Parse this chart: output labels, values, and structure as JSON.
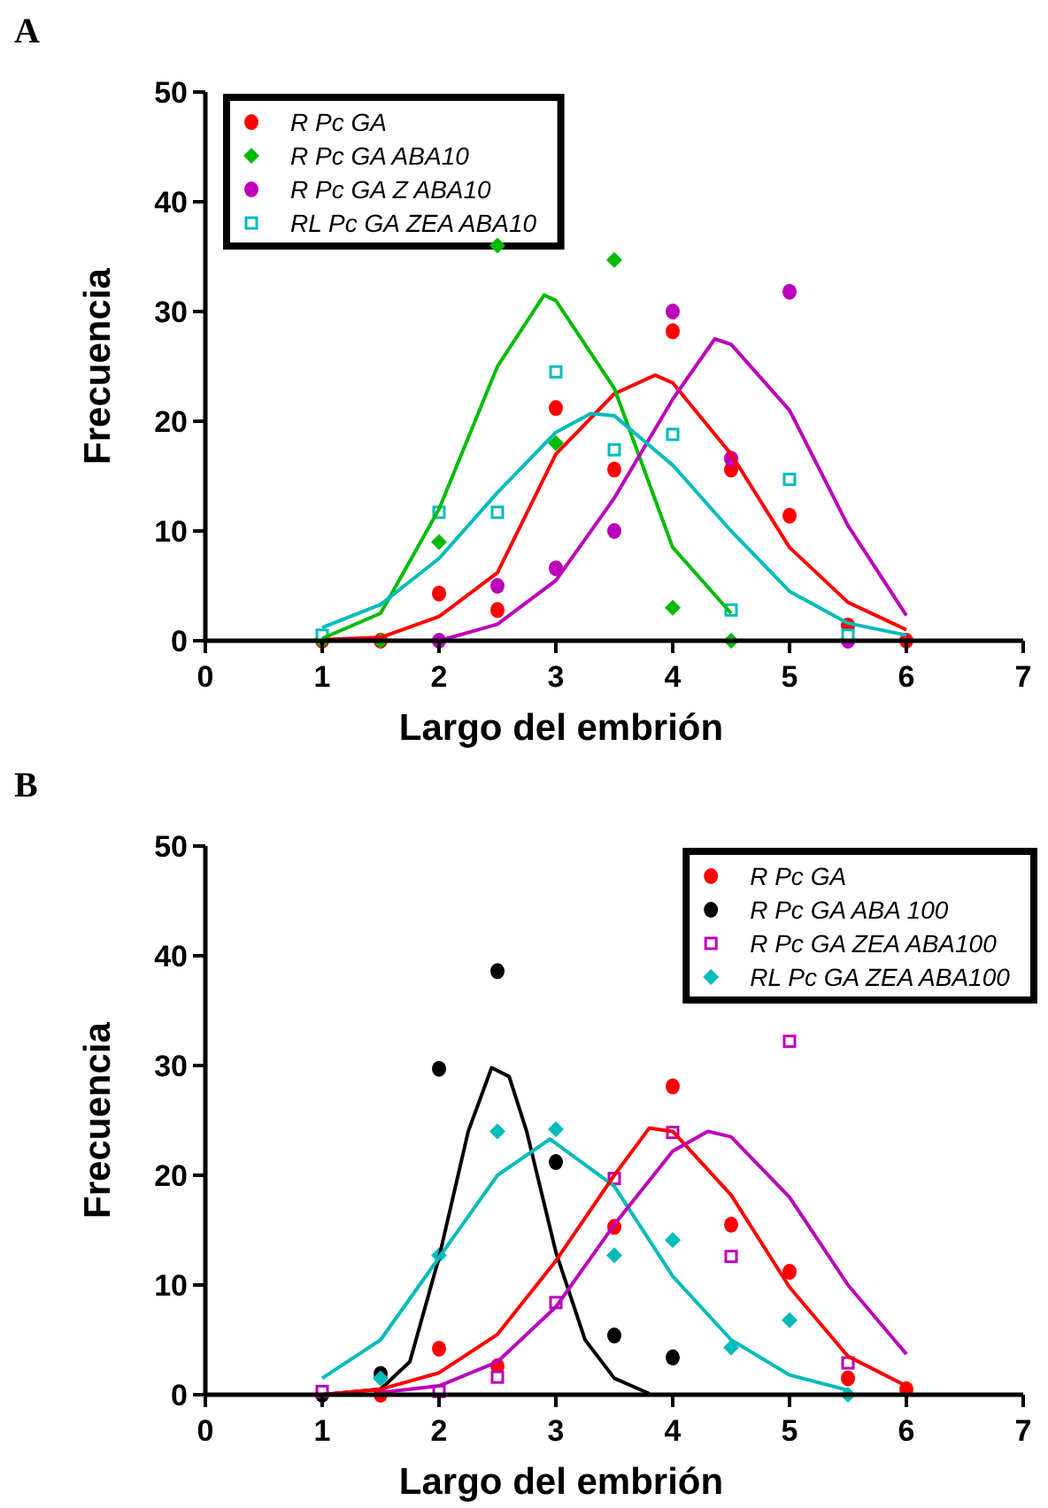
{
  "chart_data": [
    {
      "type": "scatter",
      "title": "A",
      "xlabel": "Largo del embrión",
      "ylabel": "Frecuencia",
      "xlim": [
        0,
        7
      ],
      "ylim": [
        0,
        50
      ],
      "xticks": [
        0,
        1,
        2,
        3,
        4,
        5,
        6,
        7
      ],
      "yticks": [
        0,
        10,
        20,
        30,
        40,
        50
      ],
      "grid": false,
      "legend": "top left",
      "series": [
        {
          "name": "R Pc GA",
          "type": "scatter",
          "marker": "circle",
          "color": "#ff0000",
          "x": [
            1,
            1.5,
            2,
            2.5,
            3,
            3.5,
            4,
            4.5,
            5,
            5.5,
            6
          ],
          "values": [
            0,
            0,
            4.3,
            2.8,
            21.2,
            15.6,
            28.2,
            15.6,
            11.4,
            1.4,
            0
          ]
        },
        {
          "name": "R Pc GA ABA10",
          "type": "scatter",
          "marker": "diamond",
          "color": "#00bb00",
          "x": [
            1,
            1.5,
            2,
            2.5,
            3,
            3.5,
            4,
            4.5
          ],
          "values": [
            0,
            0,
            9,
            36,
            18,
            34.7,
            3,
            0
          ]
        },
        {
          "name": "R Pc GA Z ABA10",
          "type": "scatter",
          "marker": "circle",
          "color": "#bb00bb",
          "x": [
            2,
            2.5,
            3,
            3.5,
            4,
            4.5,
            5,
            5.5
          ],
          "values": [
            0,
            5,
            6.6,
            10,
            30,
            16.6,
            31.8,
            0
          ]
        },
        {
          "name": "RL Pc GA ZEA ABA10",
          "type": "scatter",
          "marker": "square",
          "color": "#00bbbb",
          "x": [
            1,
            2,
            2.5,
            3,
            3.5,
            4,
            4.5,
            5,
            5.5
          ],
          "values": [
            0.5,
            11.7,
            11.7,
            24.5,
            17.4,
            18.8,
            2.8,
            14.7,
            0.5
          ]
        },
        {
          "type": "line",
          "color": "#ff0000",
          "x": [
            1,
            1.5,
            2,
            2.5,
            3,
            3.5,
            3.85,
            4,
            4.5,
            5,
            5.5,
            6
          ],
          "values": [
            0.1,
            0.3,
            2.2,
            6.2,
            17,
            22.5,
            24.2,
            23.5,
            17,
            8.5,
            3.5,
            1
          ]
        },
        {
          "type": "line",
          "color": "#00bb00",
          "x": [
            1,
            1.5,
            2,
            2.5,
            2.9,
            3,
            3.5,
            4,
            4.5
          ],
          "values": [
            0.2,
            2.5,
            12,
            25,
            31.5,
            31,
            23,
            8.5,
            2.5
          ]
        },
        {
          "type": "line",
          "color": "#bb00bb",
          "x": [
            2,
            2.5,
            3,
            3.5,
            4,
            4.36,
            4.5,
            5,
            5.5,
            6
          ],
          "values": [
            0,
            1.5,
            5.5,
            13,
            22,
            27.5,
            27,
            21,
            10.5,
            2.3
          ]
        },
        {
          "type": "line",
          "color": "#00bbbb",
          "x": [
            1,
            1.5,
            2,
            2.5,
            3,
            3.3,
            3.5,
            4,
            4.5,
            5,
            5.5,
            6
          ],
          "values": [
            1.2,
            3.3,
            7.5,
            13.5,
            19,
            20.7,
            20.5,
            16,
            10,
            4.5,
            1.6,
            0.5
          ]
        }
      ]
    },
    {
      "type": "scatter",
      "title": "B",
      "xlabel": "Largo del embrión",
      "ylabel": "Frecuencia",
      "xlim": [
        0,
        7
      ],
      "ylim": [
        0,
        50
      ],
      "xticks": [
        0,
        1,
        2,
        3,
        4,
        5,
        6,
        7
      ],
      "yticks": [
        0,
        10,
        20,
        30,
        40,
        50
      ],
      "grid": false,
      "legend": "top right",
      "series": [
        {
          "name": "R Pc GA",
          "type": "scatter",
          "marker": "circle",
          "color": "#ff0000",
          "x": [
            1.5,
            2,
            2.5,
            3.5,
            4,
            4.5,
            5,
            5.5,
            6
          ],
          "values": [
            0,
            4.2,
            2.6,
            15.3,
            28.1,
            15.5,
            11.2,
            1.5,
            0.5
          ]
        },
        {
          "name": "R Pc GA ABA 100",
          "type": "scatter",
          "marker": "circle",
          "color": "#000000",
          "x": [
            1,
            1.5,
            2,
            2.5,
            3,
            3.5,
            4
          ],
          "values": [
            0,
            1.9,
            29.7,
            38.6,
            21.2,
            5.4,
            3.4
          ]
        },
        {
          "name": "R Pc GA ZEA ABA100",
          "type": "scatter",
          "marker": "square",
          "color": "#bb00bb",
          "x": [
            1,
            2,
            2.5,
            3,
            3.5,
            4,
            4.5,
            5,
            5.5
          ],
          "values": [
            0.3,
            0.3,
            1.6,
            8.4,
            19.7,
            23.9,
            12.6,
            32.2,
            2.9
          ]
        },
        {
          "name": "RL Pc GA ZEA ABA100",
          "type": "scatter",
          "marker": "diamond",
          "color": "#00bbbb",
          "x": [
            1.5,
            2,
            2.5,
            3,
            3.5,
            4,
            4.5,
            5,
            5.5
          ],
          "values": [
            1.5,
            12.7,
            24,
            24.2,
            12.7,
            14.1,
            4.3,
            6.8,
            0
          ]
        },
        {
          "type": "line",
          "color": "#000000",
          "x": [
            1,
            1.5,
            1.75,
            2,
            2.25,
            2.45,
            2.6,
            2.75,
            3,
            3.25,
            3.5,
            3.8
          ],
          "values": [
            0,
            0.5,
            3,
            12.5,
            24,
            29.8,
            29,
            24,
            13,
            5,
            1.5,
            0.1
          ]
        },
        {
          "type": "line",
          "color": "#00bbbb",
          "x": [
            1,
            1.5,
            2,
            2.5,
            2.95,
            3.5,
            4,
            4.5,
            5,
            5.5
          ],
          "values": [
            1.5,
            5,
            12.5,
            20,
            23.3,
            19,
            10.8,
            5,
            1.8,
            0.4
          ]
        },
        {
          "type": "line",
          "color": "#ff0000",
          "x": [
            1,
            1.5,
            2,
            2.5,
            3,
            3.5,
            3.8,
            4,
            4.5,
            5,
            5.5,
            6
          ],
          "values": [
            0,
            0.5,
            2,
            5.5,
            12.2,
            20,
            24.3,
            24,
            18.2,
            9.8,
            3.5,
            0.8
          ]
        },
        {
          "type": "line",
          "color": "#bb00bb",
          "x": [
            1.5,
            2,
            2.5,
            3,
            3.5,
            4,
            4.3,
            4.5,
            5,
            5.5,
            6
          ],
          "values": [
            0.2,
            0.8,
            3,
            8,
            15.5,
            22.2,
            24,
            23.5,
            18,
            10,
            3.7
          ]
        }
      ]
    }
  ]
}
